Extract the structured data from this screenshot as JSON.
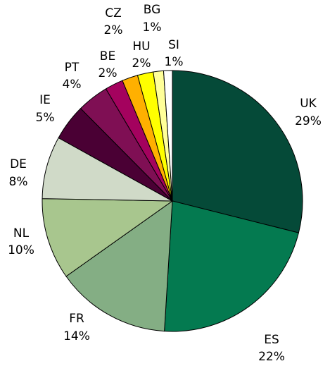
{
  "chart_data": {
    "type": "pie",
    "title": "",
    "start_angle_deg": 0,
    "direction": "clockwise",
    "slices": [
      {
        "label": "UK",
        "pct_label": "29%",
        "value": 29.5,
        "color": "#054A38"
      },
      {
        "label": "ES",
        "pct_label": "22%",
        "value": 22.5,
        "color": "#047A50"
      },
      {
        "label": "FR",
        "pct_label": "14%",
        "value": 14.5,
        "color": "#84AE84"
      },
      {
        "label": "NL",
        "pct_label": "10%",
        "value": 10.3,
        "color": "#A8C68E"
      },
      {
        "label": "DE",
        "pct_label": "8%",
        "value": 7.9,
        "color": "#D0DAC8"
      },
      {
        "label": "IE",
        "pct_label": "5%",
        "value": 4.6,
        "color": "#4A0034"
      },
      {
        "label": "PT",
        "pct_label": "4%",
        "value": 4.0,
        "color": "#7F0F54"
      },
      {
        "label": "BE",
        "pct_label": "2%",
        "value": 2.3,
        "color": "#A4025E"
      },
      {
        "label": "CZ",
        "pct_label": "2%",
        "value": 2.0,
        "color": "#FFB000"
      },
      {
        "label": "HU",
        "pct_label": "2%",
        "value": 2.0,
        "color": "#FFFF00"
      },
      {
        "label": "BG",
        "pct_label": "1%",
        "value": 1.3,
        "color": "#FFFF99"
      },
      {
        "label": "SI",
        "pct_label": "1%",
        "value": 1.1,
        "color": "#FFFFFF"
      }
    ]
  }
}
